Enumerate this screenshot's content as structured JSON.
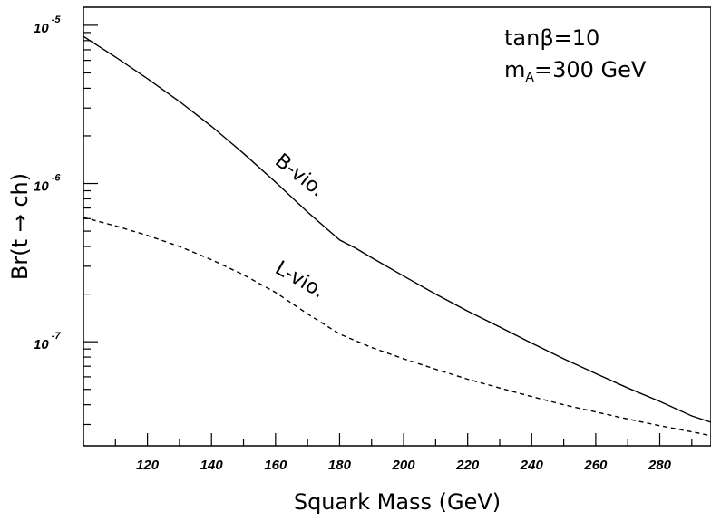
{
  "chart_data": {
    "type": "line",
    "xlabel": "Squark Mass (GeV)",
    "ylabel": "Br(t → ch)",
    "xlim": [
      100,
      296
    ],
    "ylim": [
      2.2e-08,
      1.3e-05
    ],
    "yscale": "log",
    "grid": false,
    "legend": "none",
    "x_ticks": [
      120,
      140,
      160,
      180,
      200,
      220,
      240,
      260,
      280
    ],
    "x_tick_labels": [
      "120",
      "140",
      "160",
      "180",
      "200",
      "220",
      "240",
      "260",
      "280"
    ],
    "y_major_ticks": [
      {
        "value": 1e-07,
        "base": "10",
        "exp": "-7"
      },
      {
        "value": 1e-06,
        "base": "10",
        "exp": "-6"
      },
      {
        "value": 1e-05,
        "base": "10",
        "exp": "-5"
      }
    ],
    "annotations": {
      "tanb": "tanβ=10",
      "ma": "m",
      "ma_sub": "A",
      "ma_value": "=300 GeV"
    },
    "series": [
      {
        "name": "B-vio.",
        "style": "solid",
        "color": "#000000",
        "x": [
          100,
          110,
          120,
          130,
          140,
          150,
          160,
          170,
          180,
          185,
          190,
          200,
          210,
          220,
          230,
          240,
          250,
          260,
          270,
          280,
          290,
          296
        ],
        "y": [
          8.5e-06,
          6.3e-06,
          4.6e-06,
          3.3e-06,
          2.3e-06,
          1.55e-06,
          1.02e-06,
          6.6e-07,
          4.4e-07,
          3.9e-07,
          3.4e-07,
          2.6e-07,
          2e-07,
          1.56e-07,
          1.24e-07,
          9.8e-08,
          7.8e-08,
          6.3e-08,
          5.1e-08,
          4.2e-08,
          3.4e-08,
          3.1e-08
        ]
      },
      {
        "name": "L-vio.",
        "style": "dashed",
        "color": "#000000",
        "x": [
          100,
          110,
          120,
          130,
          140,
          150,
          160,
          170,
          180,
          190,
          200,
          210,
          220,
          230,
          240,
          250,
          260,
          270,
          280,
          290,
          296
        ],
        "y": [
          6.1e-07,
          5.4e-07,
          4.7e-07,
          4e-07,
          3.3e-07,
          2.65e-07,
          2.05e-07,
          1.5e-07,
          1.12e-07,
          9.2e-08,
          7.8e-08,
          6.7e-08,
          5.8e-08,
          5.1e-08,
          4.5e-08,
          4e-08,
          3.6e-08,
          3.25e-08,
          2.95e-08,
          2.7e-08,
          2.55e-08
        ]
      }
    ]
  }
}
